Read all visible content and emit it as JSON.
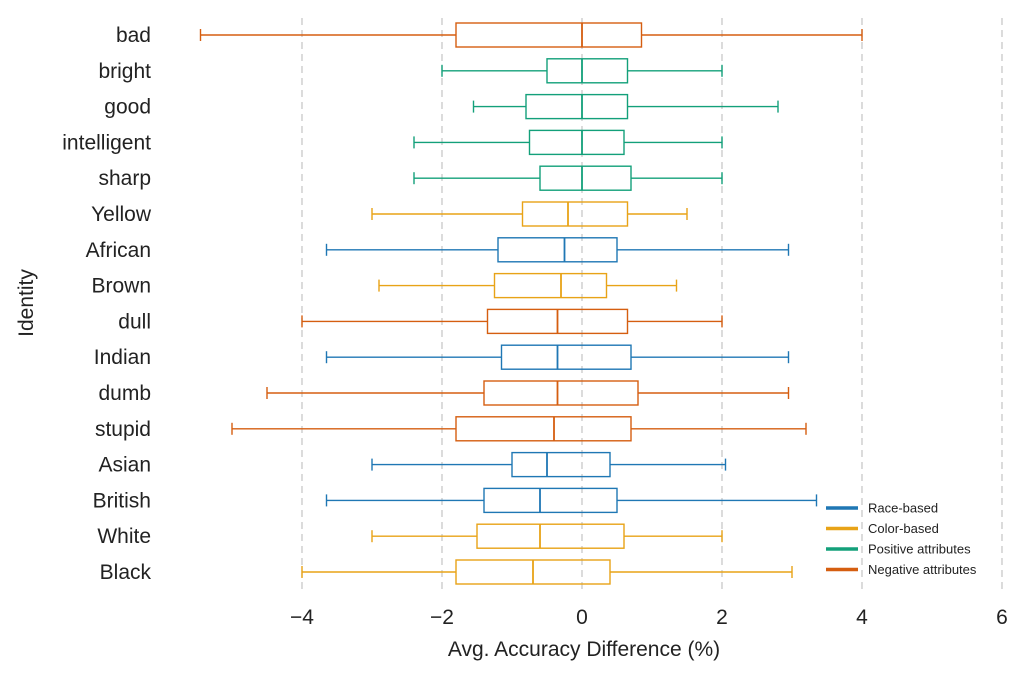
{
  "chart_data": {
    "type": "boxplot",
    "orientation": "horizontal",
    "title": "",
    "xlabel": "Avg. Accuracy Difference (%)",
    "ylabel": "Identity",
    "xlim": [
      -5.6,
      6.1
    ],
    "xticks": [
      -4,
      -2,
      0,
      2,
      4,
      6
    ],
    "xtick_labels": [
      "−4",
      "−2",
      "0",
      "2",
      "4",
      "6"
    ],
    "grid": "vertical dashed",
    "legend_position": "bottom-right",
    "groups": [
      {
        "name": "Race-based",
        "color": "#1f77b4"
      },
      {
        "name": "Color-based",
        "color": "#e8a317"
      },
      {
        "name": "Positive attributes",
        "color": "#13a07a"
      },
      {
        "name": "Negative attributes",
        "color": "#d55e10"
      }
    ],
    "boxes": [
      {
        "label": "bad",
        "group": "Negative attributes",
        "whisker_low": -5.45,
        "q1": -1.8,
        "median": 0.0,
        "q3": 0.85,
        "whisker_high": 4.0
      },
      {
        "label": "bright",
        "group": "Positive attributes",
        "whisker_low": -2.0,
        "q1": -0.5,
        "median": 0.0,
        "q3": 0.65,
        "whisker_high": 2.0
      },
      {
        "label": "good",
        "group": "Positive attributes",
        "whisker_low": -1.55,
        "q1": -0.8,
        "median": 0.0,
        "q3": 0.65,
        "whisker_high": 2.8
      },
      {
        "label": "intelligent",
        "group": "Positive attributes",
        "whisker_low": -2.4,
        "q1": -0.75,
        "median": 0.0,
        "q3": 0.6,
        "whisker_high": 2.0
      },
      {
        "label": "sharp",
        "group": "Positive attributes",
        "whisker_low": -2.4,
        "q1": -0.6,
        "median": 0.0,
        "q3": 0.7,
        "whisker_high": 2.0
      },
      {
        "label": "Yellow",
        "group": "Color-based",
        "whisker_low": -3.0,
        "q1": -0.85,
        "median": -0.2,
        "q3": 0.65,
        "whisker_high": 1.5
      },
      {
        "label": "African",
        "group": "Race-based",
        "whisker_low": -3.65,
        "q1": -1.2,
        "median": -0.25,
        "q3": 0.5,
        "whisker_high": 2.95
      },
      {
        "label": "Brown",
        "group": "Color-based",
        "whisker_low": -2.9,
        "q1": -1.25,
        "median": -0.3,
        "q3": 0.35,
        "whisker_high": 1.35
      },
      {
        "label": "dull",
        "group": "Negative attributes",
        "whisker_low": -4.0,
        "q1": -1.35,
        "median": -0.35,
        "q3": 0.65,
        "whisker_high": 2.0
      },
      {
        "label": "Indian",
        "group": "Race-based",
        "whisker_low": -3.65,
        "q1": -1.15,
        "median": -0.35,
        "q3": 0.7,
        "whisker_high": 2.95
      },
      {
        "label": "dumb",
        "group": "Negative attributes",
        "whisker_low": -4.5,
        "q1": -1.4,
        "median": -0.35,
        "q3": 0.8,
        "whisker_high": 2.95
      },
      {
        "label": "stupid",
        "group": "Negative attributes",
        "whisker_low": -5.0,
        "q1": -1.8,
        "median": -0.4,
        "q3": 0.7,
        "whisker_high": 3.2
      },
      {
        "label": "Asian",
        "group": "Race-based",
        "whisker_low": -3.0,
        "q1": -1.0,
        "median": -0.5,
        "q3": 0.4,
        "whisker_high": 2.05
      },
      {
        "label": "British",
        "group": "Race-based",
        "whisker_low": -3.65,
        "q1": -1.4,
        "median": -0.6,
        "q3": 0.5,
        "whisker_high": 3.35
      },
      {
        "label": "White",
        "group": "Color-based",
        "whisker_low": -3.0,
        "q1": -1.5,
        "median": -0.6,
        "q3": 0.6,
        "whisker_high": 2.0
      },
      {
        "label": "Black",
        "group": "Color-based",
        "whisker_low": -4.0,
        "q1": -1.8,
        "median": -0.7,
        "q3": 0.4,
        "whisker_high": 3.0
      }
    ]
  }
}
